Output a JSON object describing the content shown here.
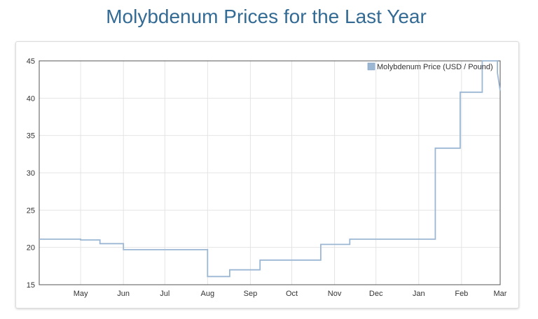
{
  "page": {
    "title": "Molybdenum Prices for the Last Year"
  },
  "chart_data": {
    "type": "line",
    "series": [
      {
        "name": "Molybdenum Price (USD / Pound)",
        "color": "#9bb7d4",
        "points": [
          [
            "Apr-1",
            21.1
          ],
          [
            "May-1",
            21.1
          ],
          [
            "May-1",
            21.0
          ],
          [
            "May-15",
            21.0
          ],
          [
            "May-15",
            20.5
          ],
          [
            "Jun-1",
            20.5
          ],
          [
            "Jun-1",
            19.7
          ],
          [
            "Aug-1",
            19.7
          ],
          [
            "Aug-1",
            16.1
          ],
          [
            "Aug-17",
            16.1
          ],
          [
            "Aug-17",
            17.0
          ],
          [
            "Sep-8",
            17.0
          ],
          [
            "Sep-8",
            18.3
          ],
          [
            "Oct-22",
            18.3
          ],
          [
            "Oct-22",
            20.4
          ],
          [
            "Nov-12",
            20.4
          ],
          [
            "Nov-12",
            21.1
          ],
          [
            "Jan-13",
            21.1
          ],
          [
            "Jan-13",
            33.3
          ],
          [
            "Jan-31",
            33.3
          ],
          [
            "Jan-31",
            40.8
          ],
          [
            "Feb-16",
            40.8
          ],
          [
            "Feb-16",
            45
          ],
          [
            "Feb-27",
            45
          ],
          [
            "Feb-27",
            43.4
          ],
          [
            "Mar-1",
            41.0
          ]
        ]
      }
    ],
    "x_tick_labels": [
      "May",
      "Jun",
      "Jul",
      "Aug",
      "Sep",
      "Oct",
      "Nov",
      "Dec",
      "Jan",
      "Feb",
      "Mar"
    ],
    "y_ticks": [
      15,
      20,
      25,
      30,
      35,
      40,
      45
    ],
    "ylim": [
      15,
      45
    ],
    "grid": true,
    "legend_position": "top-right",
    "title": "",
    "xlabel": "",
    "ylabel": ""
  }
}
